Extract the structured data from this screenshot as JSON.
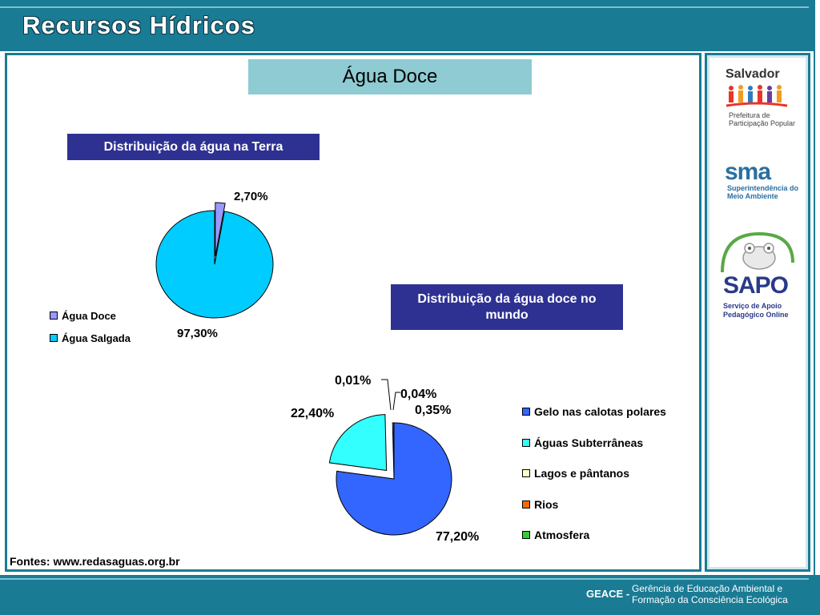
{
  "header": {
    "title": "Recursos Hídricos"
  },
  "page_title": "Água Doce",
  "sidebar": {
    "salvador": {
      "name": "Salvador",
      "subtitle": "Prefeitura de Participação Popular"
    },
    "sma": {
      "name": "sma",
      "subtitle": "Superintendência do Meio Ambiente"
    },
    "sapo": {
      "name": "SAPO",
      "subtitle": "Serviço de Apoio Pedagógico Online"
    }
  },
  "footer": {
    "org": "GEACE -",
    "description_line1": "Gerência de Educação Ambiental e",
    "description_line2": "Formação da Consciência Ecológica"
  },
  "source_note": "Fontes: www.redasaguas.org.br",
  "chart_data": [
    {
      "type": "pie",
      "title": "Distribuição da água na Terra",
      "categories": [
        "Água Doce",
        "Água Salgada"
      ],
      "values": [
        2.7,
        97.3
      ],
      "data_labels": [
        "2,70%",
        "97,30%"
      ],
      "colors": [
        "#9999ff",
        "#00ccff"
      ],
      "exploded": [
        true,
        false
      ],
      "legend": "left"
    },
    {
      "type": "pie",
      "title": "Distribuição da água doce no mundo",
      "categories": [
        "Gelo nas calotas polares",
        "Águas Subterrâneas",
        "Lagos e pântanos",
        "Rios",
        "Atmosfera"
      ],
      "values": [
        77.2,
        22.4,
        0.35,
        0.01,
        0.04
      ],
      "data_labels": [
        "77,20%",
        "22,40%",
        "0,35%",
        "0,01%",
        "0,04%"
      ],
      "colors": [
        "#3366ff",
        "#33ffff",
        "#ffffcc",
        "#ff6600",
        "#33cc33"
      ],
      "legend": "right"
    }
  ]
}
